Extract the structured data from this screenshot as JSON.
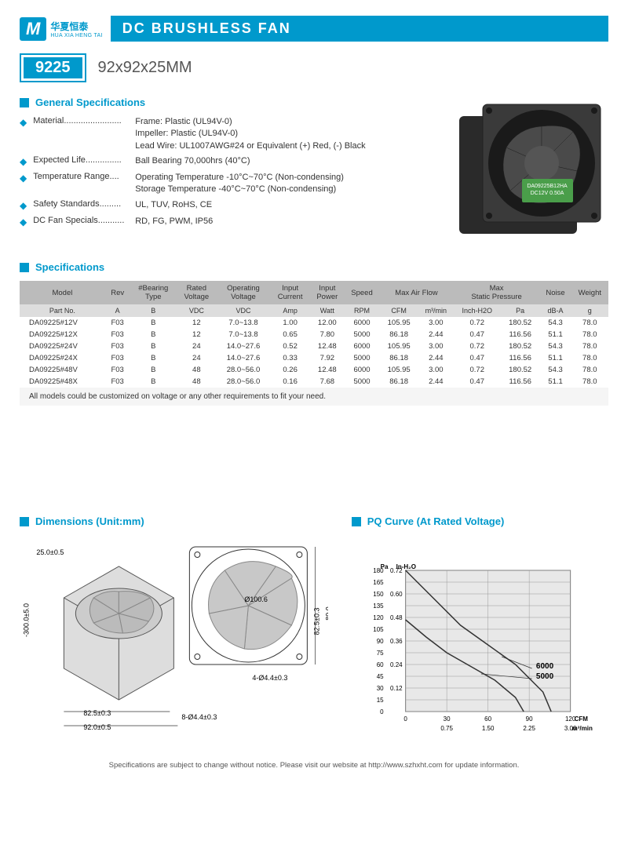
{
  "header": {
    "logo_letter": "M",
    "logo_cn": "华夏恒泰",
    "logo_en": "HUA XIA HENG TAI",
    "title": "DC BRUSHLESS FAN"
  },
  "model": {
    "number": "9225",
    "dimensions": "92x92x25MM"
  },
  "general": {
    "heading": "General Specifications",
    "items": [
      {
        "label": "Material........................",
        "value": "Frame: Plastic (UL94V-0)\nImpeller: Plastic (UL94V-0)\nLead Wire: UL1007AWG#24 or Equivalent (+) Red, (-) Black"
      },
      {
        "label": "Expected Life...............",
        "value": "Ball Bearing 70,000hrs (40°C)"
      },
      {
        "label": "Temperature Range....",
        "value": "Operating Temperature -10°C~70°C (Non-condensing)\nStorage Temperature -40°C~70°C (Non-condensing)"
      },
      {
        "label": "Safety Standards.........",
        "value": "UL, TUV, RoHS, CE"
      },
      {
        "label": "DC Fan Specials...........",
        "value": "RD, FG, PWM, IP56"
      }
    ]
  },
  "spec_table": {
    "heading": "Specifications",
    "head1": [
      "Model",
      "Rev",
      "#Bearing Type",
      "Rated Voltage",
      "Operating Voltage",
      "Input Current",
      "Input Power",
      "Speed",
      "Max Air Flow",
      "",
      "Max Static Pressure",
      "",
      "Noise",
      "Weight"
    ],
    "head2": [
      "Part No.",
      "A",
      "B",
      "VDC",
      "VDC",
      "Amp",
      "Watt",
      "RPM",
      "CFM",
      "m³/min",
      "Inch-H2O",
      "Pa",
      "dB-A",
      "g"
    ],
    "rows": [
      [
        "DA09225#12V",
        "F03",
        "B",
        "12",
        "7.0~13.8",
        "1.00",
        "12.00",
        "6000",
        "105.95",
        "3.00",
        "0.72",
        "180.52",
        "54.3",
        "78.0"
      ],
      [
        "DA09225#12X",
        "F03",
        "B",
        "12",
        "7.0~13.8",
        "0.65",
        "7.80",
        "5000",
        "86.18",
        "2.44",
        "0.47",
        "116.56",
        "51.1",
        "78.0"
      ],
      [
        "DA09225#24V",
        "F03",
        "B",
        "24",
        "14.0~27.6",
        "0.52",
        "12.48",
        "6000",
        "105.95",
        "3.00",
        "0.72",
        "180.52",
        "54.3",
        "78.0"
      ],
      [
        "DA09225#24X",
        "F03",
        "B",
        "24",
        "14.0~27.6",
        "0.33",
        "7.92",
        "5000",
        "86.18",
        "2.44",
        "0.47",
        "116.56",
        "51.1",
        "78.0"
      ],
      [
        "DA09225#48V",
        "F03",
        "B",
        "48",
        "28.0~56.0",
        "0.26",
        "12.48",
        "6000",
        "105.95",
        "3.00",
        "0.72",
        "180.52",
        "54.3",
        "78.0"
      ],
      [
        "DA09225#48X",
        "F03",
        "B",
        "48",
        "28.0~56.0",
        "0.16",
        "7.68",
        "5000",
        "86.18",
        "2.44",
        "0.47",
        "116.56",
        "51.1",
        "78.0"
      ]
    ],
    "note": "All models could be customized on voltage or any other requirements to fit your need."
  },
  "dim": {
    "heading": "Dimensions (Unit:mm)",
    "labels": {
      "depth": "25.0±0.5",
      "wire": "-300.0±5.0",
      "width": "92.0±0.5",
      "pitch": "82.5±0.3",
      "height_pitch": "82.5±0.3",
      "height_inner": "89.0",
      "dia": "Ø100.6",
      "hole_front": "4-Ø4.4±0.3",
      "hole_back": "8-Ø4.4±0.3"
    }
  },
  "pq": {
    "heading": "PQ Curve (At Rated Voltage)",
    "y1_label": "Pa",
    "y2_label": "In-H₂O",
    "x1_label": "CFM",
    "x2_label": "m³/min",
    "y_ticks_pa": [
      "180",
      "165",
      "150",
      "135",
      "120",
      "105",
      "90",
      "75",
      "60",
      "45",
      "30",
      "15",
      "0"
    ],
    "y_ticks_in": [
      "0.72",
      "0.60",
      "0.48",
      "0.36",
      "0.24",
      "0.12"
    ],
    "x_ticks_cfm": [
      "0",
      "30",
      "60",
      "90",
      "120"
    ],
    "x_ticks_m3": [
      "0.75",
      "1.50",
      "2.25",
      "3.00"
    ],
    "curve_labels": [
      "6000",
      "5000"
    ],
    "grid_color": "#999",
    "curve_color": "#333",
    "bg": "#e8e8e8"
  },
  "footer": "Specifications are subject to change without notice. Please visit our website at http://www.szhxht.com for update information."
}
